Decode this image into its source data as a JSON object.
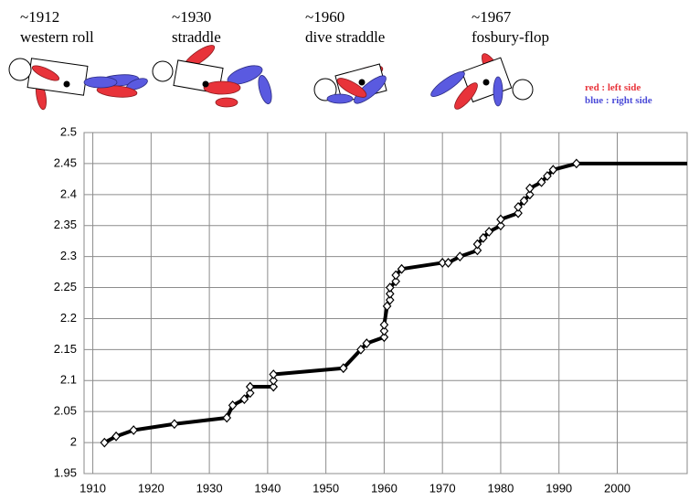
{
  "chart_data": {
    "type": "line",
    "figures": [
      {
        "year": "~1912",
        "name": "western roll"
      },
      {
        "year": "~1930",
        "name": "straddle"
      },
      {
        "year": "~1960",
        "name": "dive straddle"
      },
      {
        "year": "~1967",
        "name": "fosbury-flop"
      }
    ],
    "notes": [
      {
        "text": "red : left side",
        "color": "#e8333a"
      },
      {
        "text": "blue : right side",
        "color": "#4b4bd8"
      }
    ],
    "x": [
      1912,
      1914,
      1917,
      1924,
      1933,
      1934,
      1936,
      1937,
      1937,
      1941,
      1941,
      1941,
      1953,
      1956,
      1957,
      1960,
      1960,
      1960,
      1960.5,
      1961,
      1961,
      1961,
      1962,
      1962,
      1963,
      1970,
      1971,
      1973,
      1976,
      1976,
      1977,
      1978,
      1980,
      1980,
      1983,
      1983,
      1984,
      1985,
      1985,
      1987,
      1988,
      1989,
      1993
    ],
    "values": [
      2.0,
      2.01,
      2.02,
      2.03,
      2.04,
      2.06,
      2.07,
      2.08,
      2.09,
      2.09,
      2.1,
      2.11,
      2.12,
      2.15,
      2.16,
      2.17,
      2.18,
      2.19,
      2.22,
      2.23,
      2.24,
      2.25,
      2.26,
      2.27,
      2.28,
      2.29,
      2.29,
      2.3,
      2.31,
      2.32,
      2.33,
      2.34,
      2.35,
      2.36,
      2.37,
      2.38,
      2.39,
      2.4,
      2.41,
      2.42,
      2.43,
      2.44,
      2.45
    ],
    "color": "#000000",
    "xlim": [
      1908.5,
      2012
    ],
    "xticks": [
      1910,
      1920,
      1930,
      1940,
      1950,
      1960,
      1970,
      1980,
      1990,
      2000
    ],
    "ylim": [
      1.95,
      2.5
    ],
    "yticks": [
      1.95,
      2,
      2.05,
      2.1,
      2.15,
      2.2,
      2.25,
      2.3,
      2.35,
      2.4,
      2.45,
      2.5
    ],
    "grid": true
  }
}
